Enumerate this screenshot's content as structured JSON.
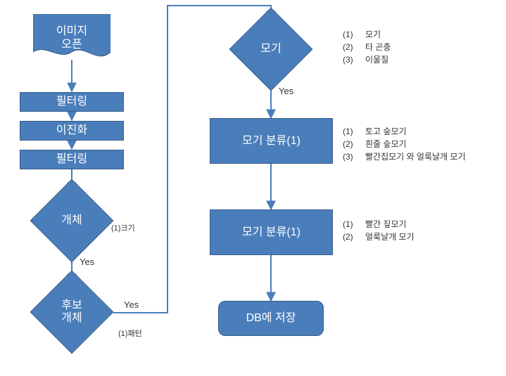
{
  "colors": {
    "fill": "#4a7ebb",
    "stroke": "#385d8a",
    "text": "#ffffff",
    "label": "#333333",
    "bg": "#ffffff"
  },
  "nodes": {
    "open": {
      "text": "이미지\n오픈"
    },
    "filter1": {
      "text": "필터링"
    },
    "binarize": {
      "text": "이진화"
    },
    "filter2": {
      "text": "필터링"
    },
    "object": {
      "text": "개체",
      "side": "(1)크기"
    },
    "cand": {
      "text": "후보\n개체",
      "side": "(1)패턴"
    },
    "mogi": {
      "text": "모기"
    },
    "class1": {
      "text": "모기 분류(1)"
    },
    "class2": {
      "text": "모기 분류(1)"
    },
    "save": {
      "text": "DB에 저장"
    }
  },
  "edges": {
    "object_yes": "Yes",
    "cand_yes": "Yes",
    "mogi_yes": "Yes"
  },
  "lists": {
    "mogi": [
      {
        "n": "(1)",
        "t": "모기"
      },
      {
        "n": "(2)",
        "t": "타 곤충"
      },
      {
        "n": "(3)",
        "t": "이물질"
      }
    ],
    "class1": [
      {
        "n": "(1)",
        "t": "토고 숲모기"
      },
      {
        "n": "(2)",
        "t": "흰줄 숲모기"
      },
      {
        "n": "(3)",
        "t": "빨간집모기 와 얼룩날개 모기"
      }
    ],
    "class2": [
      {
        "n": "(1)",
        "t": "빨간 짚모기"
      },
      {
        "n": "(2)",
        "t": "얼룩날개 모기"
      }
    ]
  }
}
